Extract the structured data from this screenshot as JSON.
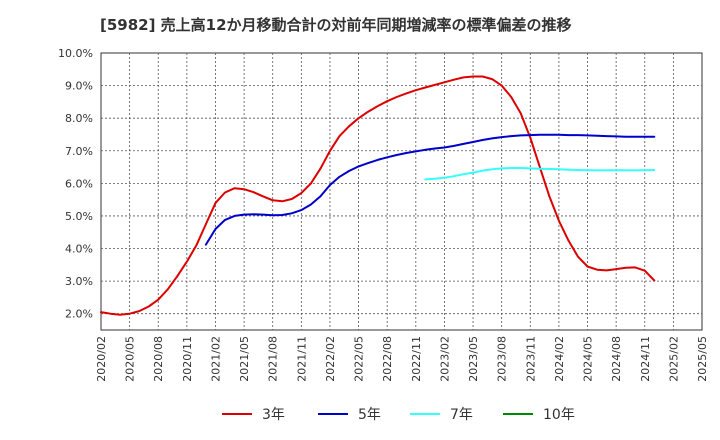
{
  "title": "[5982]  売上高12か月移動合計の対前年同期増減率の標準偏差の推移",
  "chart_data": {
    "type": "line",
    "title": "[5982]  売上高12か月移動合計の対前年同期増減率の標準偏差の推移",
    "xlabel": "",
    "ylabel": "",
    "ylim": [
      1.5,
      10.0
    ],
    "xlim": [
      "2020/02",
      "2025/05"
    ],
    "grid": true,
    "legend_position": "bottom",
    "y_ticks": [
      "2.0%",
      "3.0%",
      "4.0%",
      "5.0%",
      "6.0%",
      "7.0%",
      "8.0%",
      "9.0%",
      "10.0%"
    ],
    "x_ticks": [
      "2020/02",
      "2020/05",
      "2020/08",
      "2020/11",
      "2021/02",
      "2021/05",
      "2021/08",
      "2021/11",
      "2022/02",
      "2022/05",
      "2022/08",
      "2022/11",
      "2023/02",
      "2023/05",
      "2023/08",
      "2023/11",
      "2024/02",
      "2024/05",
      "2024/08",
      "2024/11",
      "2025/02",
      "2025/05"
    ],
    "series": [
      {
        "name": "3年",
        "color": "#dd0000",
        "points": [
          [
            "2020/02",
            2.05
          ],
          [
            "2020/03",
            2.0
          ],
          [
            "2020/04",
            1.97
          ],
          [
            "2020/05",
            2.0
          ],
          [
            "2020/06",
            2.08
          ],
          [
            "2020/07",
            2.22
          ],
          [
            "2020/08",
            2.43
          ],
          [
            "2020/09",
            2.75
          ],
          [
            "2020/10",
            3.15
          ],
          [
            "2020/11",
            3.6
          ],
          [
            "2020/12",
            4.1
          ],
          [
            "2021/01",
            4.75
          ],
          [
            "2021/02",
            5.4
          ],
          [
            "2021/03",
            5.72
          ],
          [
            "2021/04",
            5.85
          ],
          [
            "2021/05",
            5.82
          ],
          [
            "2021/06",
            5.73
          ],
          [
            "2021/07",
            5.6
          ],
          [
            "2021/08",
            5.48
          ],
          [
            "2021/09",
            5.45
          ],
          [
            "2021/10",
            5.52
          ],
          [
            "2021/11",
            5.7
          ],
          [
            "2021/12",
            6.0
          ],
          [
            "2022/01",
            6.45
          ],
          [
            "2022/02",
            7.0
          ],
          [
            "2022/03",
            7.45
          ],
          [
            "2022/04",
            7.75
          ],
          [
            "2022/05",
            8.0
          ],
          [
            "2022/06",
            8.2
          ],
          [
            "2022/07",
            8.37
          ],
          [
            "2022/08",
            8.52
          ],
          [
            "2022/09",
            8.65
          ],
          [
            "2022/10",
            8.76
          ],
          [
            "2022/11",
            8.86
          ],
          [
            "2022/12",
            8.94
          ],
          [
            "2023/01",
            9.02
          ],
          [
            "2023/02",
            9.1
          ],
          [
            "2023/03",
            9.18
          ],
          [
            "2023/04",
            9.25
          ],
          [
            "2023/05",
            9.28
          ],
          [
            "2023/06",
            9.28
          ],
          [
            "2023/07",
            9.2
          ],
          [
            "2023/08",
            9.0
          ],
          [
            "2023/09",
            8.65
          ],
          [
            "2023/10",
            8.15
          ],
          [
            "2023/11",
            7.4
          ],
          [
            "2023/12",
            6.5
          ],
          [
            "2024/01",
            5.6
          ],
          [
            "2024/02",
            4.85
          ],
          [
            "2024/03",
            4.25
          ],
          [
            "2024/04",
            3.75
          ],
          [
            "2024/05",
            3.45
          ],
          [
            "2024/06",
            3.35
          ],
          [
            "2024/07",
            3.33
          ],
          [
            "2024/08",
            3.37
          ],
          [
            "2024/09",
            3.41
          ],
          [
            "2024/10",
            3.42
          ],
          [
            "2024/11",
            3.32
          ],
          [
            "2024/12",
            3.02
          ]
        ]
      },
      {
        "name": "5年",
        "color": "#0000cc",
        "points": [
          [
            "2021/01",
            4.12
          ],
          [
            "2021/02",
            4.6
          ],
          [
            "2021/03",
            4.88
          ],
          [
            "2021/04",
            5.0
          ],
          [
            "2021/05",
            5.04
          ],
          [
            "2021/06",
            5.05
          ],
          [
            "2021/07",
            5.04
          ],
          [
            "2021/08",
            5.02
          ],
          [
            "2021/09",
            5.03
          ],
          [
            "2021/10",
            5.08
          ],
          [
            "2021/11",
            5.18
          ],
          [
            "2021/12",
            5.35
          ],
          [
            "2022/01",
            5.6
          ],
          [
            "2022/02",
            5.95
          ],
          [
            "2022/03",
            6.2
          ],
          [
            "2022/04",
            6.38
          ],
          [
            "2022/05",
            6.52
          ],
          [
            "2022/06",
            6.62
          ],
          [
            "2022/07",
            6.72
          ],
          [
            "2022/08",
            6.8
          ],
          [
            "2022/09",
            6.87
          ],
          [
            "2022/10",
            6.93
          ],
          [
            "2022/11",
            6.98
          ],
          [
            "2022/12",
            7.03
          ],
          [
            "2023/01",
            7.07
          ],
          [
            "2023/02",
            7.1
          ],
          [
            "2023/03",
            7.15
          ],
          [
            "2023/04",
            7.21
          ],
          [
            "2023/05",
            7.27
          ],
          [
            "2023/06",
            7.33
          ],
          [
            "2023/07",
            7.38
          ],
          [
            "2023/08",
            7.42
          ],
          [
            "2023/09",
            7.45
          ],
          [
            "2023/10",
            7.47
          ],
          [
            "2023/11",
            7.48
          ],
          [
            "2023/12",
            7.49
          ],
          [
            "2024/01",
            7.49
          ],
          [
            "2024/02",
            7.49
          ],
          [
            "2024/03",
            7.48
          ],
          [
            "2024/04",
            7.48
          ],
          [
            "2024/05",
            7.47
          ],
          [
            "2024/06",
            7.46
          ],
          [
            "2024/07",
            7.45
          ],
          [
            "2024/08",
            7.44
          ],
          [
            "2024/09",
            7.43
          ],
          [
            "2024/10",
            7.43
          ],
          [
            "2024/11",
            7.43
          ],
          [
            "2024/12",
            7.43
          ]
        ]
      },
      {
        "name": "7年",
        "color": "#33ffff",
        "points": [
          [
            "2022/12",
            6.12
          ],
          [
            "2023/01",
            6.14
          ],
          [
            "2023/02",
            6.17
          ],
          [
            "2023/03",
            6.22
          ],
          [
            "2023/04",
            6.28
          ],
          [
            "2023/05",
            6.33
          ],
          [
            "2023/06",
            6.39
          ],
          [
            "2023/07",
            6.43
          ],
          [
            "2023/08",
            6.46
          ],
          [
            "2023/09",
            6.47
          ],
          [
            "2023/10",
            6.47
          ],
          [
            "2023/11",
            6.46
          ],
          [
            "2023/12",
            6.45
          ],
          [
            "2024/01",
            6.44
          ],
          [
            "2024/02",
            6.43
          ],
          [
            "2024/03",
            6.42
          ],
          [
            "2024/04",
            6.41
          ],
          [
            "2024/05",
            6.4
          ],
          [
            "2024/06",
            6.4
          ],
          [
            "2024/07",
            6.4
          ],
          [
            "2024/08",
            6.4
          ],
          [
            "2024/09",
            6.4
          ],
          [
            "2024/10",
            6.4
          ],
          [
            "2024/11",
            6.4
          ],
          [
            "2024/12",
            6.41
          ]
        ]
      },
      {
        "name": "10年",
        "color": "#008800",
        "points": []
      }
    ]
  }
}
